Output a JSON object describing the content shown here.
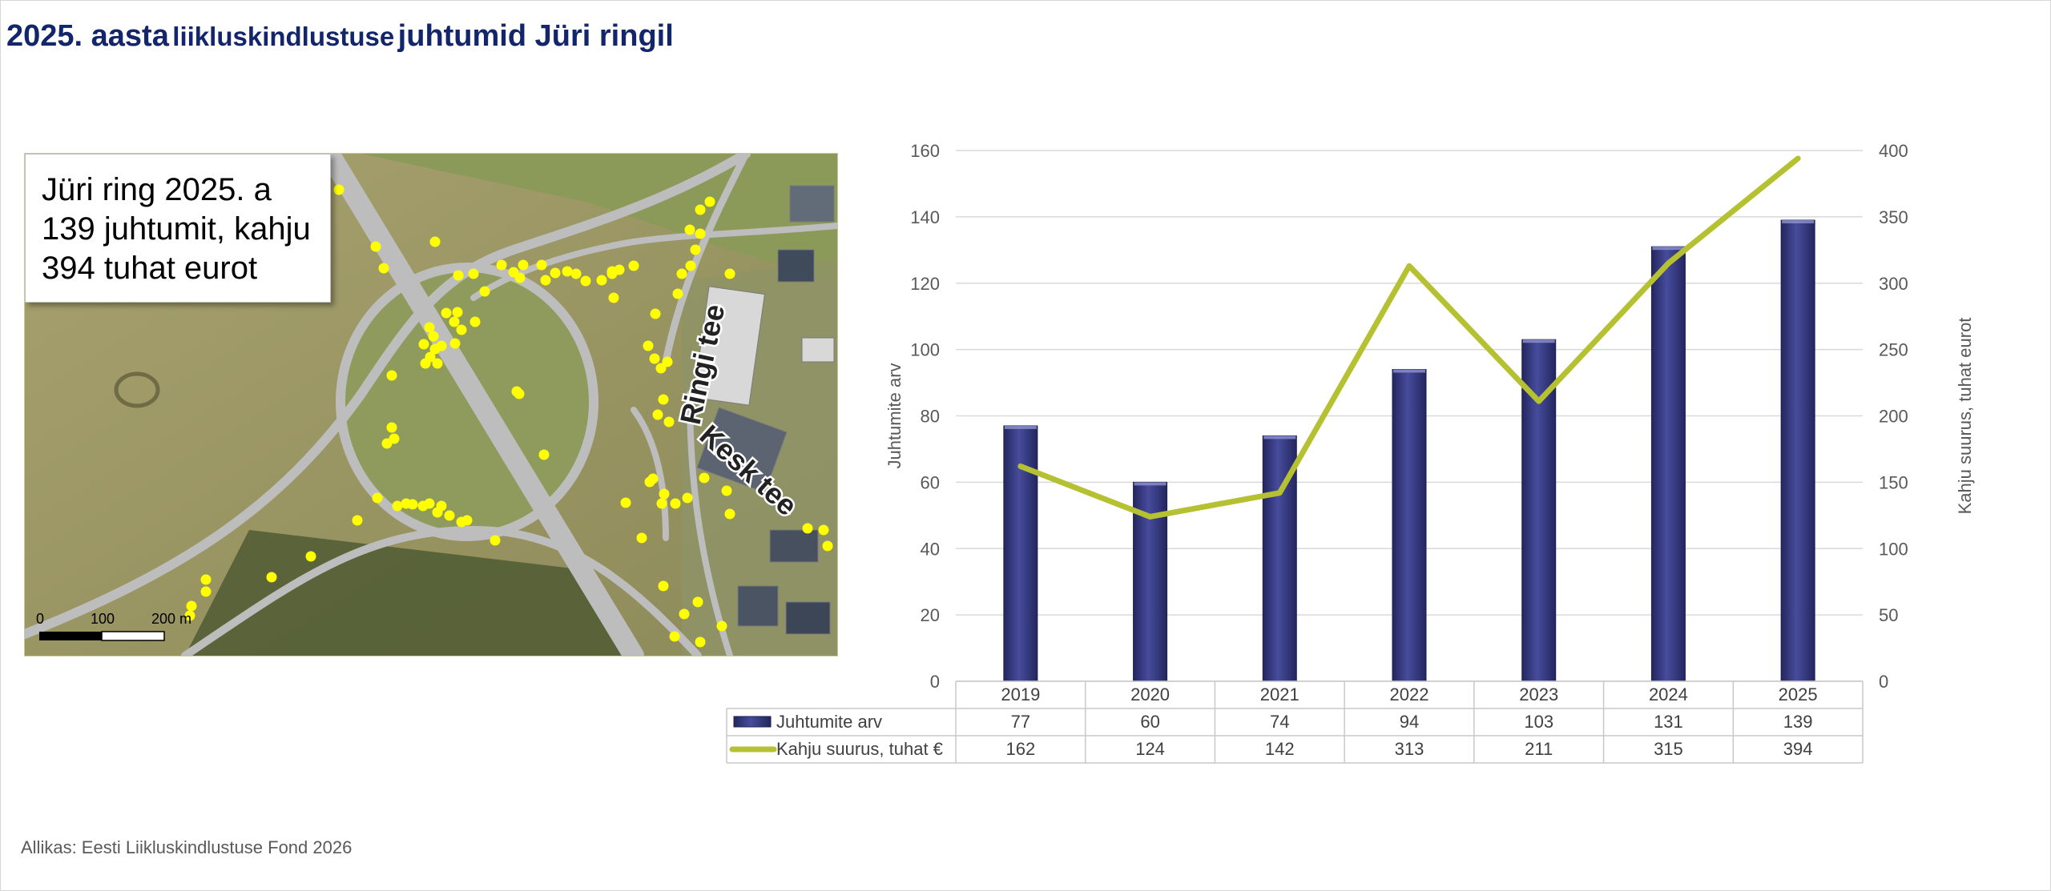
{
  "title": {
    "part1": "2025. aasta",
    "part2": "liikluskindlustuse",
    "part3": "juhtumid Jüri ringil"
  },
  "map": {
    "info_lines": [
      "Jüri ring 2025. a",
      "139 juhtumit, kahju",
      "394 tuhat eurot"
    ],
    "road_label_1": "Ringi tee",
    "road_label_2": "Kesk tee",
    "scale_labels": [
      "0",
      "100",
      "200 m"
    ],
    "marker_color": "#ffff00"
  },
  "chart_data": {
    "type": "bar",
    "categories": [
      "2019",
      "2020",
      "2021",
      "2022",
      "2023",
      "2024",
      "2025"
    ],
    "series": [
      {
        "name": "Juhtumite arv",
        "kind": "bar",
        "axis": "left",
        "color": "#2e3177",
        "values": [
          77,
          60,
          74,
          94,
          103,
          131,
          139
        ]
      },
      {
        "name": "Kahju suurus, tuhat €",
        "kind": "line",
        "axis": "right",
        "color": "#b5c130",
        "values": [
          162,
          124,
          142,
          313,
          211,
          315,
          394
        ]
      }
    ],
    "ylabel": "Juhtumite arv",
    "y2label": "Kahju suurus, tuhat eurot",
    "ylim": [
      0,
      160
    ],
    "y2lim": [
      0,
      400
    ],
    "yticks": [
      0,
      20,
      40,
      60,
      80,
      100,
      120,
      140,
      160
    ],
    "y2ticks": [
      0,
      50,
      100,
      150,
      200,
      250,
      300,
      350,
      400
    ],
    "grid": true,
    "data_table": true
  },
  "source": "Allikas: Eesti Liikluskindlustuse Fond 2026"
}
